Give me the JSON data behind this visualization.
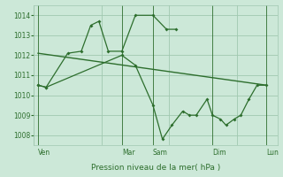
{
  "background_color": "#cce8d8",
  "grid_color": "#a0c8b0",
  "line_color": "#2d6e2d",
  "xlabel": "Pression niveau de la mer( hPa )",
  "ylim": [
    1007.5,
    1014.5
  ],
  "yticks": [
    1008,
    1009,
    1010,
    1011,
    1012,
    1013,
    1014
  ],
  "xlim": [
    0,
    18
  ],
  "day_labels": [
    "Ven",
    "Mar",
    "Sam",
    "Dim",
    "Lun"
  ],
  "day_positions": [
    0.3,
    6.5,
    8.8,
    13.2,
    17.2
  ],
  "vline_positions": [
    0.3,
    6.5,
    8.8,
    13.2,
    17.2
  ],
  "series1_x": [
    0.3,
    0.9,
    2.5,
    3.5,
    4.2,
    4.8,
    5.5,
    6.5,
    7.5,
    8.8,
    9.8,
    10.5
  ],
  "series1_y": [
    1010.5,
    1010.4,
    1012.1,
    1012.2,
    1013.5,
    1013.7,
    1012.2,
    1012.2,
    1014.0,
    1014.0,
    1013.3,
    1013.3
  ],
  "series2_x": [
    0.3,
    0.9,
    6.5,
    7.5,
    8.8,
    9.5,
    10.2,
    11.0,
    11.5,
    12.0,
    12.8,
    13.2,
    13.8,
    14.2,
    14.8,
    15.3,
    15.9,
    16.5,
    17.2
  ],
  "series2_y": [
    1010.5,
    1010.4,
    1012.0,
    1011.5,
    1009.5,
    1007.8,
    1008.5,
    1009.2,
    1009.0,
    1009.0,
    1009.8,
    1009.0,
    1008.8,
    1008.5,
    1008.8,
    1009.0,
    1009.8,
    1010.5,
    1010.5
  ],
  "trend_x": [
    0.3,
    17.2
  ],
  "trend_y": [
    1012.1,
    1010.5
  ],
  "ylabel_fontsize": 5.5,
  "xlabel_fontsize": 6.5,
  "day_label_fontsize": 5.5
}
